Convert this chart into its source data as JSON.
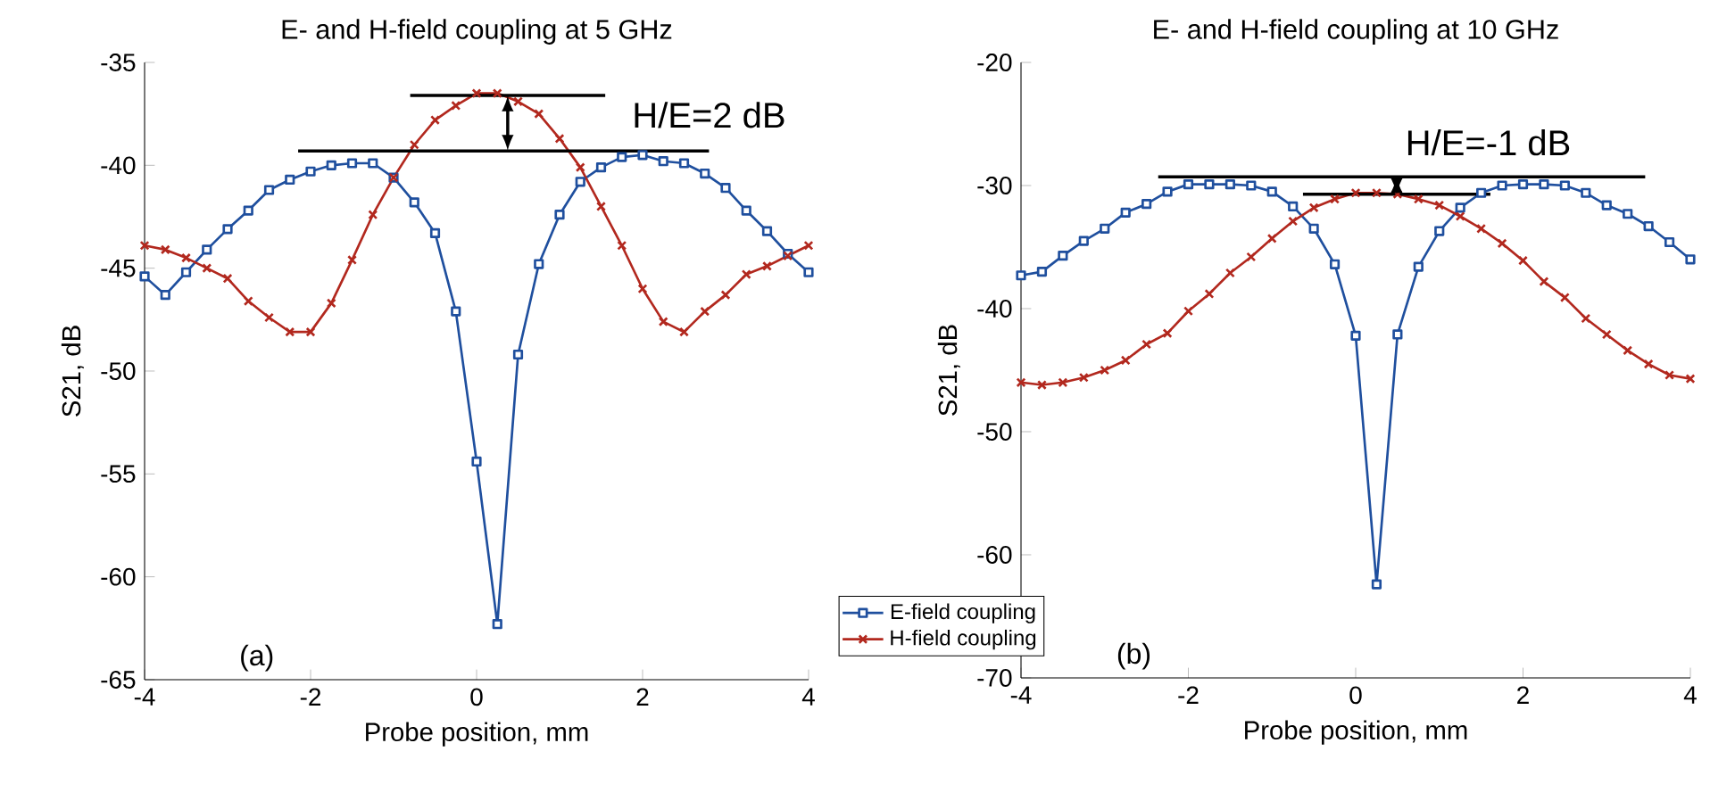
{
  "chart_data": [
    {
      "type": "line",
      "title": "E- and H-field coupling at 5 GHz",
      "xlabel": "Probe position, mm",
      "ylabel": "S21, dB",
      "xlim": [
        -4,
        4
      ],
      "ylim": [
        -65,
        -35
      ],
      "xticks": [
        -4,
        -2,
        0,
        2,
        4
      ],
      "yticks": [
        -65,
        -60,
        -55,
        -50,
        -45,
        -40,
        -35
      ],
      "legend": false,
      "x": [
        -4,
        -3.75,
        -3.5,
        -3.25,
        -3,
        -2.75,
        -2.5,
        -2.25,
        -2,
        -1.75,
        -1.5,
        -1.25,
        -1,
        -0.75,
        -0.5,
        -0.25,
        0,
        0.25,
        0.5,
        0.75,
        1,
        1.25,
        1.5,
        1.75,
        2,
        2.25,
        2.5,
        2.75,
        3,
        3.25,
        3.5,
        3.75,
        4
      ],
      "series": [
        {
          "color": "#1f4f9e",
          "marker": "square",
          "values": [
            -45.4,
            -46.3,
            -45.2,
            -44.1,
            -43.1,
            -42.2,
            -41.2,
            -40.7,
            -40.3,
            -40.0,
            -39.9,
            -39.9,
            -40.6,
            -41.8,
            -43.3,
            -47.1,
            -54.4,
            -62.3,
            -49.2,
            -44.8,
            -42.4,
            -40.8,
            -40.1,
            -39.6,
            -39.5,
            -39.8,
            -39.9,
            -40.4,
            -41.1,
            -42.2,
            -43.2,
            -44.3,
            -45.2
          ]
        },
        {
          "color": "#b2281e",
          "marker": "cross",
          "values": [
            -43.9,
            -44.1,
            -44.5,
            -45.0,
            -45.5,
            -46.6,
            -47.4,
            -48.1,
            -48.1,
            -46.7,
            -44.6,
            -42.4,
            -40.6,
            -39.0,
            -37.8,
            -37.1,
            -36.5,
            -36.5,
            -36.9,
            -37.5,
            -38.7,
            -40.1,
            -42.0,
            -43.9,
            -46.0,
            -47.6,
            -48.1,
            -47.1,
            -46.3,
            -45.3,
            -44.9,
            -44.4,
            -43.9
          ]
        },
        {
          "color": "#000000",
          "marker": "none",
          "x": [
            -0.8,
            1.55
          ],
          "values": [
            -36.6,
            -36.6
          ]
        },
        {
          "color": "#000000",
          "marker": "none",
          "x": [
            -2.15,
            2.8
          ],
          "values": [
            -39.3,
            -39.3
          ]
        }
      ],
      "annotations": [
        "H/E=2 dB",
        "(a)"
      ]
    },
    {
      "type": "line",
      "title": "E- and H-field coupling at 10 GHz",
      "xlabel": "Probe position, mm",
      "ylabel": "S21, dB",
      "xlim": [
        -4,
        4
      ],
      "ylim": [
        -70,
        -20
      ],
      "xticks": [
        -4,
        -2,
        0,
        2,
        4
      ],
      "yticks": [
        -70,
        -60,
        -50,
        -40,
        -30,
        -20
      ],
      "legend": "bottom left",
      "x": [
        -4,
        -3.75,
        -3.5,
        -3.25,
        -3,
        -2.75,
        -2.5,
        -2.25,
        -2,
        -1.75,
        -1.5,
        -1.25,
        -1,
        -0.75,
        -0.5,
        -0.25,
        0,
        0.25,
        0.5,
        0.75,
        1,
        1.25,
        1.5,
        1.75,
        2,
        2.25,
        2.5,
        2.75,
        3,
        3.25,
        3.5,
        3.75,
        4
      ],
      "series": [
        {
          "name": "E-field coupling",
          "color": "#1f4f9e",
          "marker": "square",
          "values": [
            -37.3,
            -37.0,
            -35.7,
            -34.5,
            -33.5,
            -32.2,
            -31.5,
            -30.5,
            -29.9,
            -29.9,
            -29.9,
            -30.0,
            -30.5,
            -31.7,
            -33.5,
            -36.4,
            -42.2,
            -62.4,
            -42.1,
            -36.6,
            -33.7,
            -31.8,
            -30.6,
            -30.0,
            -29.9,
            -29.9,
            -30.0,
            -30.6,
            -31.6,
            -32.3,
            -33.3,
            -34.6,
            -36.0
          ]
        },
        {
          "name": "H-field coupling",
          "color": "#b2281e",
          "marker": "cross",
          "values": [
            -46.0,
            -46.2,
            -46.0,
            -45.6,
            -45.0,
            -44.2,
            -42.9,
            -42.0,
            -40.2,
            -38.8,
            -37.1,
            -35.8,
            -34.3,
            -32.9,
            -31.8,
            -31.1,
            -30.6,
            -30.6,
            -30.7,
            -31.1,
            -31.6,
            -32.5,
            -33.5,
            -34.7,
            -36.1,
            -37.8,
            -39.1,
            -40.8,
            -42.1,
            -43.4,
            -44.5,
            -45.4,
            -45.7
          ]
        },
        {
          "color": "#000000",
          "marker": "none",
          "x": [
            -2.36,
            3.46
          ],
          "values": [
            -29.3,
            -29.3
          ]
        },
        {
          "color": "#000000",
          "marker": "none",
          "x": [
            -0.63,
            1.61
          ],
          "values": [
            -30.7,
            -30.7
          ]
        }
      ],
      "annotations": [
        "H/E=-1 dB",
        "(b)"
      ]
    }
  ]
}
